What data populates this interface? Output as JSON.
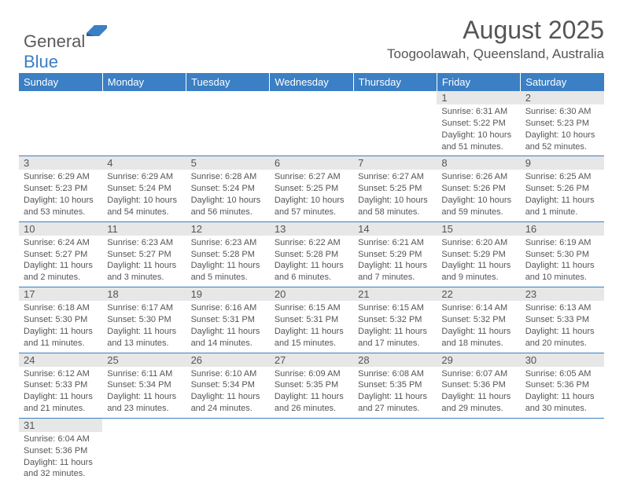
{
  "logo": {
    "text_general": "General",
    "text_blue": "Blue"
  },
  "header": {
    "title": "August 2025",
    "location": "Toogoolawah, Queensland, Australia"
  },
  "colors": {
    "header_bg": "#3b7fc4",
    "daynum_bg": "#e7e7e7",
    "border": "#3b7fc4",
    "text": "#555555"
  },
  "weekdays": [
    "Sunday",
    "Monday",
    "Tuesday",
    "Wednesday",
    "Thursday",
    "Friday",
    "Saturday"
  ],
  "weeks": [
    [
      null,
      null,
      null,
      null,
      null,
      {
        "n": "1",
        "sunrise": "6:31 AM",
        "sunset": "5:22 PM",
        "daylight": "10 hours and 51 minutes."
      },
      {
        "n": "2",
        "sunrise": "6:30 AM",
        "sunset": "5:23 PM",
        "daylight": "10 hours and 52 minutes."
      }
    ],
    [
      {
        "n": "3",
        "sunrise": "6:29 AM",
        "sunset": "5:23 PM",
        "daylight": "10 hours and 53 minutes."
      },
      {
        "n": "4",
        "sunrise": "6:29 AM",
        "sunset": "5:24 PM",
        "daylight": "10 hours and 54 minutes."
      },
      {
        "n": "5",
        "sunrise": "6:28 AM",
        "sunset": "5:24 PM",
        "daylight": "10 hours and 56 minutes."
      },
      {
        "n": "6",
        "sunrise": "6:27 AM",
        "sunset": "5:25 PM",
        "daylight": "10 hours and 57 minutes."
      },
      {
        "n": "7",
        "sunrise": "6:27 AM",
        "sunset": "5:25 PM",
        "daylight": "10 hours and 58 minutes."
      },
      {
        "n": "8",
        "sunrise": "6:26 AM",
        "sunset": "5:26 PM",
        "daylight": "10 hours and 59 minutes."
      },
      {
        "n": "9",
        "sunrise": "6:25 AM",
        "sunset": "5:26 PM",
        "daylight": "11 hours and 1 minute."
      }
    ],
    [
      {
        "n": "10",
        "sunrise": "6:24 AM",
        "sunset": "5:27 PM",
        "daylight": "11 hours and 2 minutes."
      },
      {
        "n": "11",
        "sunrise": "6:23 AM",
        "sunset": "5:27 PM",
        "daylight": "11 hours and 3 minutes."
      },
      {
        "n": "12",
        "sunrise": "6:23 AM",
        "sunset": "5:28 PM",
        "daylight": "11 hours and 5 minutes."
      },
      {
        "n": "13",
        "sunrise": "6:22 AM",
        "sunset": "5:28 PM",
        "daylight": "11 hours and 6 minutes."
      },
      {
        "n": "14",
        "sunrise": "6:21 AM",
        "sunset": "5:29 PM",
        "daylight": "11 hours and 7 minutes."
      },
      {
        "n": "15",
        "sunrise": "6:20 AM",
        "sunset": "5:29 PM",
        "daylight": "11 hours and 9 minutes."
      },
      {
        "n": "16",
        "sunrise": "6:19 AM",
        "sunset": "5:30 PM",
        "daylight": "11 hours and 10 minutes."
      }
    ],
    [
      {
        "n": "17",
        "sunrise": "6:18 AM",
        "sunset": "5:30 PM",
        "daylight": "11 hours and 11 minutes."
      },
      {
        "n": "18",
        "sunrise": "6:17 AM",
        "sunset": "5:30 PM",
        "daylight": "11 hours and 13 minutes."
      },
      {
        "n": "19",
        "sunrise": "6:16 AM",
        "sunset": "5:31 PM",
        "daylight": "11 hours and 14 minutes."
      },
      {
        "n": "20",
        "sunrise": "6:15 AM",
        "sunset": "5:31 PM",
        "daylight": "11 hours and 15 minutes."
      },
      {
        "n": "21",
        "sunrise": "6:15 AM",
        "sunset": "5:32 PM",
        "daylight": "11 hours and 17 minutes."
      },
      {
        "n": "22",
        "sunrise": "6:14 AM",
        "sunset": "5:32 PM",
        "daylight": "11 hours and 18 minutes."
      },
      {
        "n": "23",
        "sunrise": "6:13 AM",
        "sunset": "5:33 PM",
        "daylight": "11 hours and 20 minutes."
      }
    ],
    [
      {
        "n": "24",
        "sunrise": "6:12 AM",
        "sunset": "5:33 PM",
        "daylight": "11 hours and 21 minutes."
      },
      {
        "n": "25",
        "sunrise": "6:11 AM",
        "sunset": "5:34 PM",
        "daylight": "11 hours and 23 minutes."
      },
      {
        "n": "26",
        "sunrise": "6:10 AM",
        "sunset": "5:34 PM",
        "daylight": "11 hours and 24 minutes."
      },
      {
        "n": "27",
        "sunrise": "6:09 AM",
        "sunset": "5:35 PM",
        "daylight": "11 hours and 26 minutes."
      },
      {
        "n": "28",
        "sunrise": "6:08 AM",
        "sunset": "5:35 PM",
        "daylight": "11 hours and 27 minutes."
      },
      {
        "n": "29",
        "sunrise": "6:07 AM",
        "sunset": "5:36 PM",
        "daylight": "11 hours and 29 minutes."
      },
      {
        "n": "30",
        "sunrise": "6:05 AM",
        "sunset": "5:36 PM",
        "daylight": "11 hours and 30 minutes."
      }
    ],
    [
      {
        "n": "31",
        "sunrise": "6:04 AM",
        "sunset": "5:36 PM",
        "daylight": "11 hours and 32 minutes."
      },
      null,
      null,
      null,
      null,
      null,
      null
    ]
  ]
}
